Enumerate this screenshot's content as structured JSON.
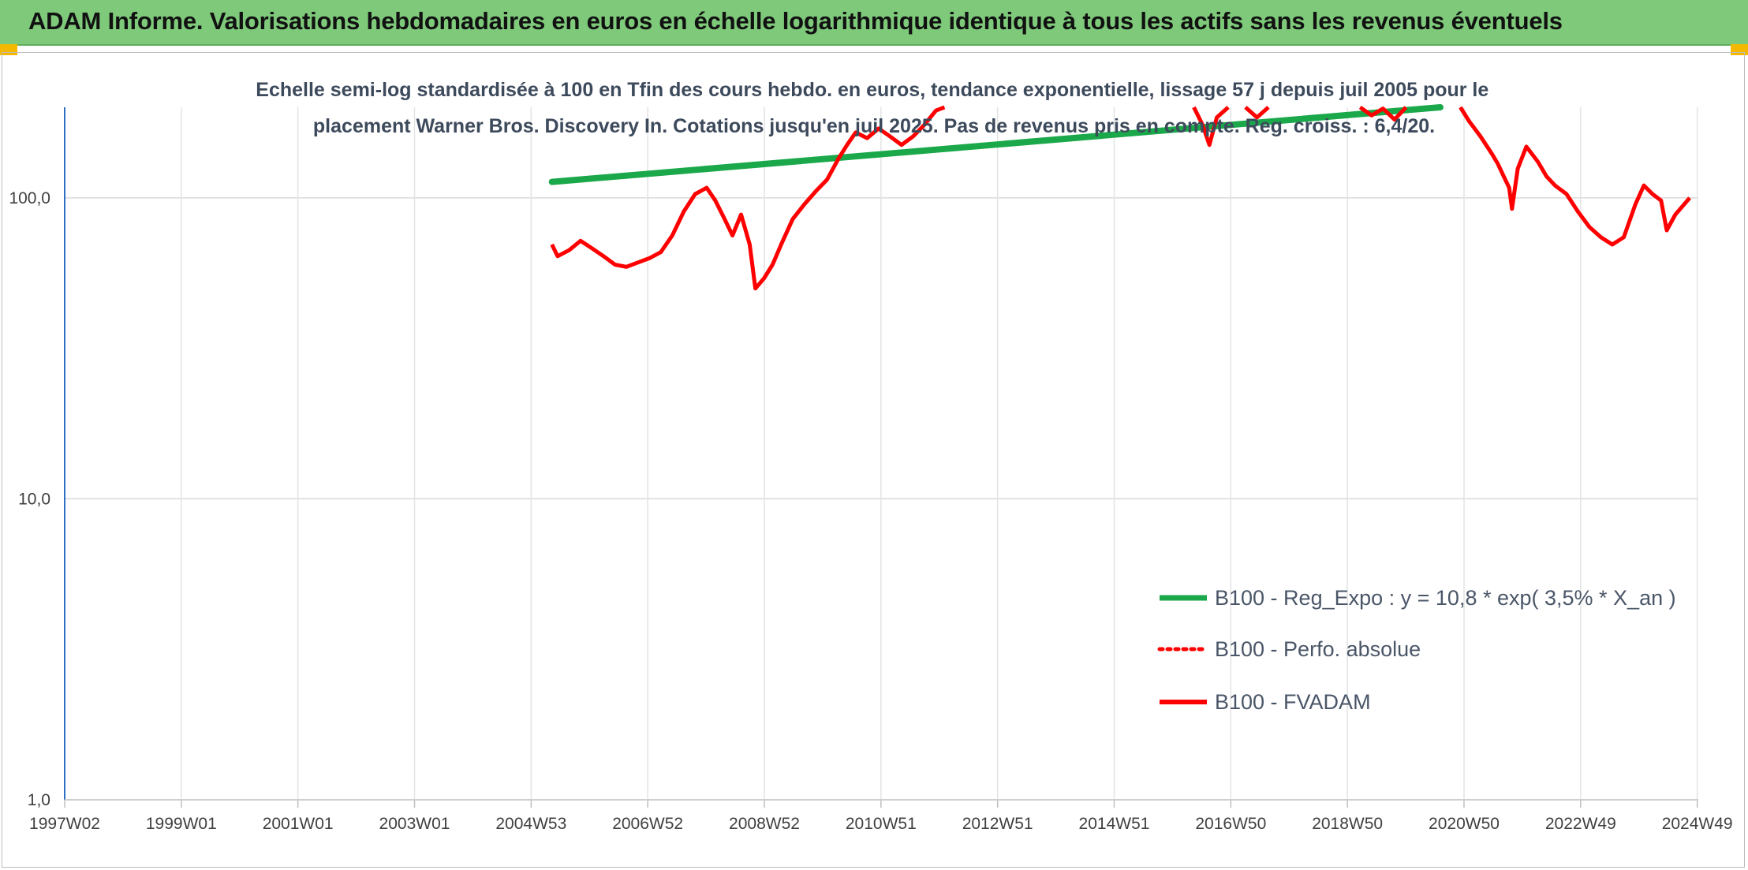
{
  "header": {
    "title": "ADAM Informe. Valorisations hebdomadaires en euros en échelle logarithmique identique à tous les actifs sans les revenus éventuels"
  },
  "colors": {
    "header_bg": "#7ec97a",
    "corner": "#f5b800",
    "trend": "#1aa84a",
    "series": "#ff0000",
    "axis": "#2f6fc2"
  },
  "chart_data": {
    "type": "line",
    "title": "Echelle semi-log standardisée à 100 en Tfin des cours hebdo. en euros, tendance exponentielle, lissage 57 j depuis juil 2005 pour le placement Warner Bros. Discovery In. Cotations jusqu'en juil 2025. Pas de revenus pris en compte. Reg. croiss. : 6,4/20.",
    "title_lines": [
      "Echelle semi-log standardisée à 100 en Tfin des cours hebdo. en euros, tendance exponentielle, lissage 57 j depuis juil 2005 pour le",
      "placement Warner Bros. Discovery In. Cotations jusqu'en juil 2025. Pas de revenus pris en compte. Reg. croiss. : 6,4/20."
    ],
    "y_scale": "log",
    "ylim": [
      1,
      200
    ],
    "y_ticks": [
      "1,0",
      "10,0",
      "100,0"
    ],
    "x_ticks": [
      "1997W02",
      "1999W01",
      "2001W01",
      "2003W01",
      "2004W53",
      "2006W52",
      "2008W52",
      "2010W51",
      "2012W51",
      "2014W51",
      "2016W50",
      "2018W50",
      "2020W50",
      "2022W49",
      "2024W49"
    ],
    "grid": true,
    "legend_position": "bottom-right",
    "series": [
      {
        "name": "B100 - Reg_Expo : y = 10,8 * exp( 3,5% *  X_an )",
        "style": "solid-thick",
        "color": "#1aa84a",
        "points": [
          [
            2005.5,
            113
          ],
          [
            2021.0,
            200
          ]
        ]
      },
      {
        "name": "B100 - Perfo. absolue",
        "style": "dotted",
        "color": "#ff0000",
        "points": []
      },
      {
        "name": "B100 - FVADAM",
        "style": "solid",
        "color": "#ff0000",
        "points": [
          [
            2005.5,
            70
          ],
          [
            2005.6,
            64
          ],
          [
            2005.8,
            67
          ],
          [
            2006.0,
            72
          ],
          [
            2006.2,
            68
          ],
          [
            2006.4,
            64
          ],
          [
            2006.6,
            60
          ],
          [
            2006.8,
            59
          ],
          [
            2007.0,
            61
          ],
          [
            2007.2,
            63
          ],
          [
            2007.4,
            66
          ],
          [
            2007.6,
            75
          ],
          [
            2007.8,
            90
          ],
          [
            2008.0,
            103
          ],
          [
            2008.2,
            108
          ],
          [
            2008.35,
            98
          ],
          [
            2008.5,
            86
          ],
          [
            2008.65,
            75
          ],
          [
            2008.8,
            88
          ],
          [
            2008.95,
            70
          ],
          [
            2009.05,
            50
          ],
          [
            2009.2,
            54
          ],
          [
            2009.35,
            60
          ],
          [
            2009.5,
            70
          ],
          [
            2009.7,
            85
          ],
          [
            2009.9,
            95
          ],
          [
            2010.1,
            105
          ],
          [
            2010.3,
            115
          ],
          [
            2010.5,
            135
          ],
          [
            2010.65,
            150
          ],
          [
            2010.8,
            165
          ],
          [
            2011.0,
            158
          ],
          [
            2011.2,
            170
          ],
          [
            2011.4,
            160
          ],
          [
            2011.6,
            150
          ],
          [
            2011.8,
            160
          ],
          [
            2012.0,
            175
          ],
          [
            2012.2,
            195
          ],
          [
            2012.35,
            200
          ]
        ],
        "segments_upper": [
          [
            [
              2016.7,
              200
            ],
            [
              2016.85,
              175
            ],
            [
              2016.97,
              150
            ],
            [
              2017.1,
              185
            ],
            [
              2017.3,
              200
            ]
          ],
          [
            [
              2017.6,
              200
            ],
            [
              2017.8,
              185
            ],
            [
              2018.0,
              200
            ]
          ],
          [
            [
              2019.6,
              200
            ],
            [
              2019.8,
              188
            ],
            [
              2020.0,
              198
            ],
            [
              2020.2,
              182
            ],
            [
              2020.4,
              200
            ]
          ],
          [
            [
              2021.35,
              200
            ],
            [
              2021.5,
              180
            ],
            [
              2021.7,
              160
            ],
            [
              2021.9,
              140
            ],
            [
              2022.0,
              130
            ],
            [
              2022.2,
              108
            ],
            [
              2022.25,
              92
            ],
            [
              2022.35,
              125
            ],
            [
              2022.5,
              148
            ],
            [
              2022.7,
              132
            ],
            [
              2022.85,
              118
            ],
            [
              2023.0,
              110
            ],
            [
              2023.2,
              103
            ],
            [
              2023.4,
              90
            ],
            [
              2023.6,
              80
            ],
            [
              2023.8,
              74
            ],
            [
              2024.0,
              70
            ],
            [
              2024.2,
              74
            ],
            [
              2024.4,
              95
            ],
            [
              2024.55,
              110
            ],
            [
              2024.7,
              103
            ],
            [
              2024.85,
              98
            ],
            [
              2024.95,
              78
            ],
            [
              2025.1,
              88
            ],
            [
              2025.35,
              100
            ]
          ]
        ]
      }
    ]
  }
}
